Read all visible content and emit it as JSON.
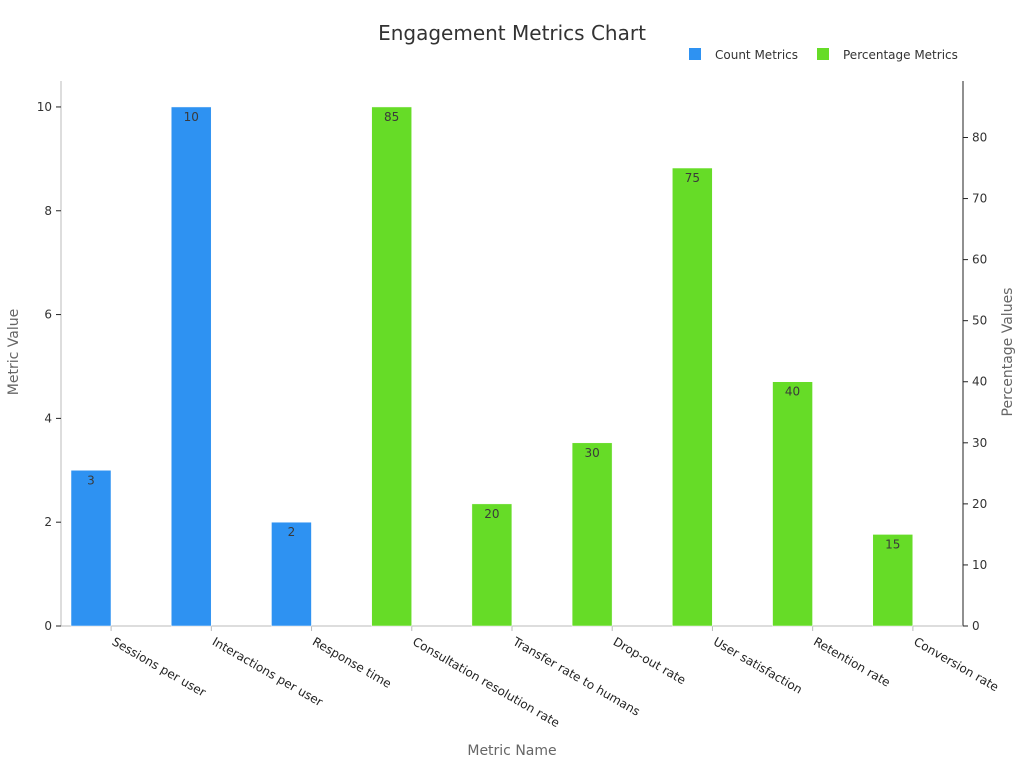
{
  "chart_data": {
    "type": "bar",
    "title": "Engagement Metrics Chart",
    "xlabel": "Metric Name",
    "ylabel": "Metric Value",
    "y2label": "Percentage Values",
    "categories": [
      "Sessions per user",
      "Interactions per user",
      "Response time",
      "Consultation resolution rate",
      "Transfer rate to humans",
      "Drop-out rate",
      "User satisfaction",
      "Retention rate",
      "Conversion rate"
    ],
    "series": [
      {
        "name": "Count Metrics",
        "axis": "left",
        "color": "#2e92f2",
        "values": [
          3,
          10,
          2,
          null,
          null,
          null,
          null,
          null,
          null
        ]
      },
      {
        "name": "Percentage Metrics",
        "axis": "right",
        "color": "#66dc27",
        "values": [
          null,
          null,
          null,
          85,
          20,
          30,
          75,
          40,
          15
        ]
      }
    ],
    "ylim": [
      0,
      10.5
    ],
    "y2lim": [
      0,
      89.25
    ],
    "yticks": [
      0,
      2,
      4,
      6,
      8,
      10
    ],
    "y2ticks": [
      0,
      10,
      20,
      30,
      40,
      50,
      60,
      70,
      80
    ],
    "legend_position": "top-right",
    "grid": false
  }
}
